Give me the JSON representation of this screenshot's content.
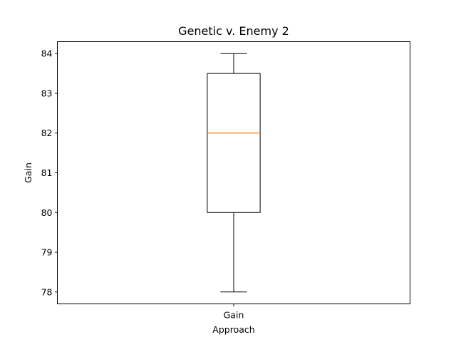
{
  "chart_data": {
    "type": "box",
    "title": "Genetic v. Enemy 2",
    "xlabel": "Approach",
    "ylabel": "Gain",
    "ylim": [
      77.7,
      84.3
    ],
    "yticks": [
      78,
      79,
      80,
      81,
      82,
      83,
      84
    ],
    "categories": [
      "Gain"
    ],
    "boxes": [
      {
        "name": "Gain",
        "whisker_low": 78,
        "q1": 80,
        "median": 82,
        "q3": 83.5,
        "whisker_high": 84
      }
    ],
    "grid": false,
    "colors": {
      "box": "#000000",
      "median": "#ff7f0e",
      "axes": "#000000",
      "background": "#ffffff"
    }
  }
}
